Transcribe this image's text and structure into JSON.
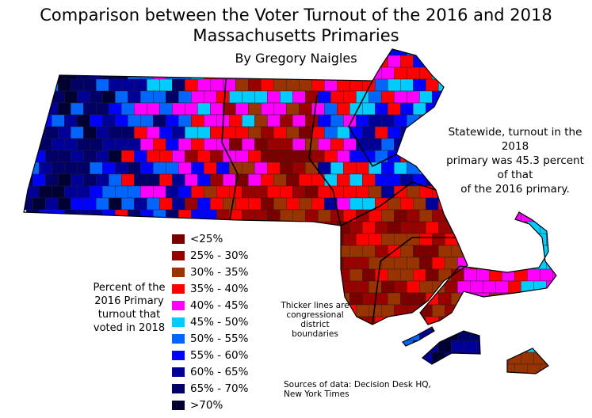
{
  "title_lines": [
    "Comparison between the Voter Turnout of the 2016 and 2018",
    "Massachusetts Primaries"
  ],
  "subtitle": "By Gregory Naigles",
  "statewide_note": [
    "Statewide, turnout in the 2018",
    "primary was 45.3 percent of that",
    "of the 2016 primary."
  ],
  "statewide_ratio_percent": 45.3,
  "legend": {
    "title": [
      "Percent of the",
      "2016 Primary",
      "turnout that",
      "voted in 2018"
    ],
    "items": [
      {
        "label": "<25%",
        "color": "#7a0000"
      },
      {
        "label": "25% - 30%",
        "color": "#990000"
      },
      {
        "label": "30% - 35%",
        "color": "#993300"
      },
      {
        "label": "35% - 40%",
        "color": "#ff0000"
      },
      {
        "label": "40% - 45%",
        "color": "#ff00ff"
      },
      {
        "label": "45% - 50%",
        "color": "#00ccff"
      },
      {
        "label": "50% - 55%",
        "color": "#0066ff"
      },
      {
        "label": "55% - 60%",
        "color": "#0000ff"
      },
      {
        "label": "60% - 65%",
        "color": "#000099"
      },
      {
        "label": "65% - 70%",
        "color": "#000066"
      },
      {
        "label": ">70%",
        "color": "#000033"
      }
    ]
  },
  "boundary_note": [
    "Thicker lines are",
    "congressional",
    "district boundaries"
  ],
  "sources": [
    "Sources of data: Decision Desk HQ,",
    "New York Times"
  ]
}
